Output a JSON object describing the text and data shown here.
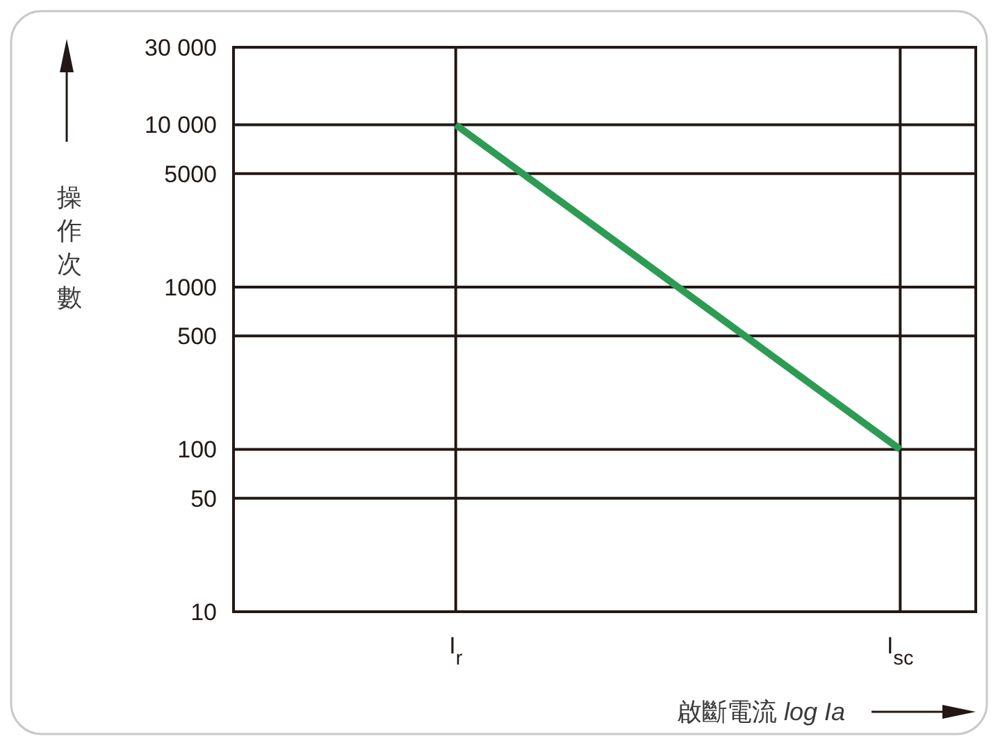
{
  "chart_data": {
    "type": "line",
    "xlabel": "啟斷電流 *log Ia*",
    "ylabel": "操作次數",
    "log": "y",
    "grid": true,
    "line_style": "solid",
    "categories": [
      "I$_{r}$",
      "I$_{sc}$"
    ],
    "ylim": [
      10,
      30000
    ],
    "yticks": [
      10,
      50,
      100,
      500,
      1000,
      5000,
      {
        "value": 10000,
        "label": "10 000"
      },
      {
        "value": 30000,
        "label": "30 000"
      }
    ],
    "series": [
      {
        "color": "#2e9b55",
        "values": [
          10000,
          100
        ]
      }
    ]
  }
}
